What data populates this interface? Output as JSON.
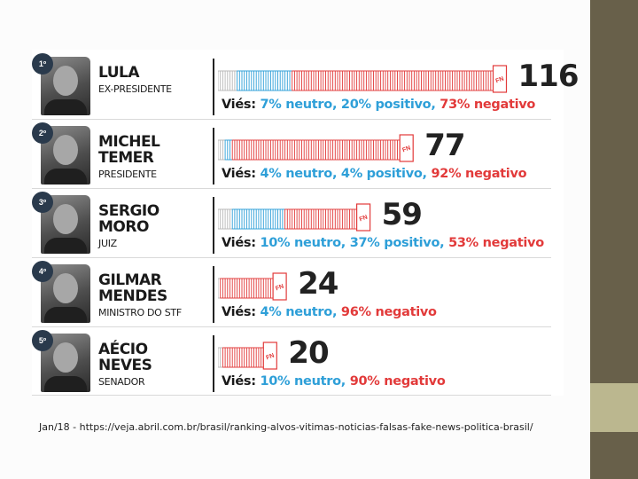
{
  "caption": "Jan/18 - https://veja.abril.com.br/brasil/ranking-alvos-vitimas-noticias-falsas-fake-news-politica-brasil/",
  "badge_text": "FN",
  "bias_label": "Viés:",
  "colors": {
    "neutral": "#b7b7b7",
    "positive": "#2e9fd8",
    "negative": "#e23a3a",
    "frame": "#2a3a4c"
  },
  "chart_data": {
    "type": "bar",
    "title": "",
    "unit": "",
    "categories": [
      "LULA",
      "MICHEL TEMER",
      "SERGIO MORO",
      "GILMAR MENDES",
      "AÉCIO NEVES"
    ],
    "rows": [
      {
        "rank": "1º",
        "name_lines": [
          "LULA"
        ],
        "role": "EX-PRESIDENTE",
        "count": 116,
        "neutral_pct": 7,
        "positive_pct": 20,
        "negative_pct": 73,
        "bias_text": {
          "neutral": "7% neutro,",
          "positive": "20% positivo,",
          "negative": "73% negativo"
        }
      },
      {
        "rank": "2º",
        "name_lines": [
          "MICHEL",
          "TEMER"
        ],
        "role": "PRESIDENTE",
        "count": 77,
        "neutral_pct": 4,
        "positive_pct": 4,
        "negative_pct": 92,
        "bias_text": {
          "neutral": "4% neutro,",
          "positive": "4% positivo,",
          "negative": "92% negativo"
        }
      },
      {
        "rank": "3º",
        "name_lines": [
          "SERGIO",
          "MORO"
        ],
        "role": "JUIZ",
        "count": 59,
        "neutral_pct": 10,
        "positive_pct": 37,
        "negative_pct": 53,
        "bias_text": {
          "neutral": "10% neutro,",
          "positive": "37% positivo,",
          "negative": "53% negativo"
        }
      },
      {
        "rank": "4º",
        "name_lines": [
          "GILMAR",
          "MENDES"
        ],
        "role": "MINISTRO DO STF",
        "count": 24,
        "neutral_pct": 4,
        "positive_pct": 0,
        "negative_pct": 96,
        "bias_text": {
          "neutral": "4% neutro,",
          "positive": "",
          "negative": "96% negativo"
        }
      },
      {
        "rank": "5º",
        "name_lines": [
          "AÉCIO",
          "NEVES"
        ],
        "role": "SENADOR",
        "count": 20,
        "neutral_pct": 10,
        "positive_pct": 0,
        "negative_pct": 90,
        "bias_text": {
          "neutral": "10% neutro,",
          "positive": "",
          "negative": "90% negativo"
        }
      }
    ]
  }
}
